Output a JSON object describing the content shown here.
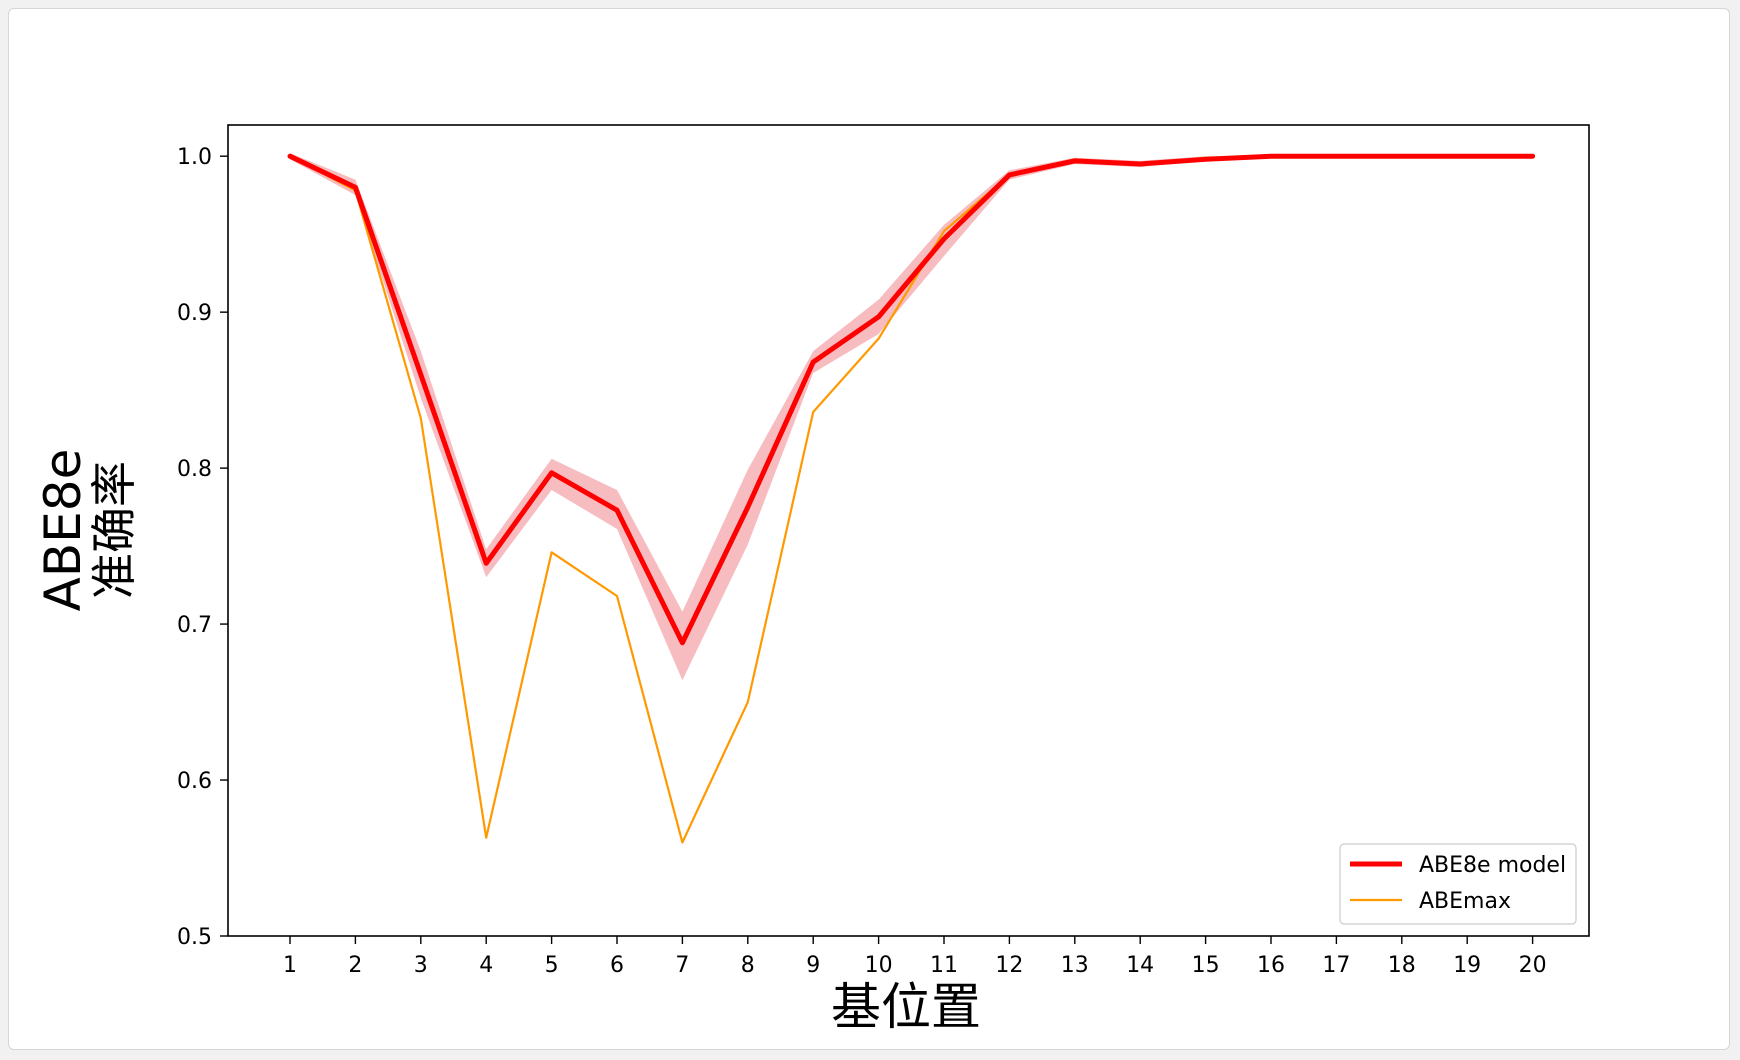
{
  "chart_data": {
    "type": "line",
    "title": "",
    "xlabel": "基位置",
    "ylabel_lines": [
      "ABE8e",
      "准确率"
    ],
    "x": [
      1,
      2,
      3,
      4,
      5,
      6,
      7,
      8,
      9,
      10,
      11,
      12,
      13,
      14,
      15,
      16,
      17,
      18,
      19,
      20
    ],
    "xticks": [
      "1",
      "2",
      "3",
      "4",
      "5",
      "6",
      "7",
      "8",
      "9",
      "10",
      "11",
      "12",
      "13",
      "14",
      "15",
      "16",
      "17",
      "18",
      "19",
      "20"
    ],
    "ylim": [
      0.5,
      1.02
    ],
    "yticks": [
      "0.5",
      "0.6",
      "0.7",
      "0.8",
      "0.9",
      "1.0"
    ],
    "grid": false,
    "legend_position": "bottom-right",
    "series": [
      {
        "name": "ABE8e model",
        "color": "#ff0000",
        "band_color": "#f4a6ab",
        "values": [
          1.0,
          0.98,
          0.86,
          0.739,
          0.797,
          0.773,
          0.688,
          0.775,
          0.868,
          0.897,
          0.947,
          0.988,
          0.997,
          0.995,
          0.998,
          1.0,
          1.0,
          1.0,
          1.0,
          1.0
        ],
        "lower": [
          0.998,
          0.975,
          0.845,
          0.73,
          0.786,
          0.761,
          0.664,
          0.751,
          0.861,
          0.886,
          0.936,
          0.985,
          0.995,
          0.993,
          0.997,
          0.999,
          0.999,
          0.999,
          0.999,
          0.999
        ],
        "upper": [
          1.002,
          0.985,
          0.875,
          0.748,
          0.806,
          0.786,
          0.708,
          0.799,
          0.875,
          0.908,
          0.956,
          0.991,
          0.999,
          0.997,
          1.0,
          1.001,
          1.001,
          1.001,
          1.001,
          1.001
        ]
      },
      {
        "name": "ABEmax",
        "color": "#ff9900",
        "values": [
          1.0,
          0.978,
          0.832,
          0.563,
          0.746,
          0.718,
          0.56,
          0.65,
          0.836,
          0.883,
          0.952,
          0.988,
          0.998,
          0.995,
          0.999,
          1.0,
          1.0,
          1.0,
          1.0,
          1.0
        ]
      }
    ]
  }
}
